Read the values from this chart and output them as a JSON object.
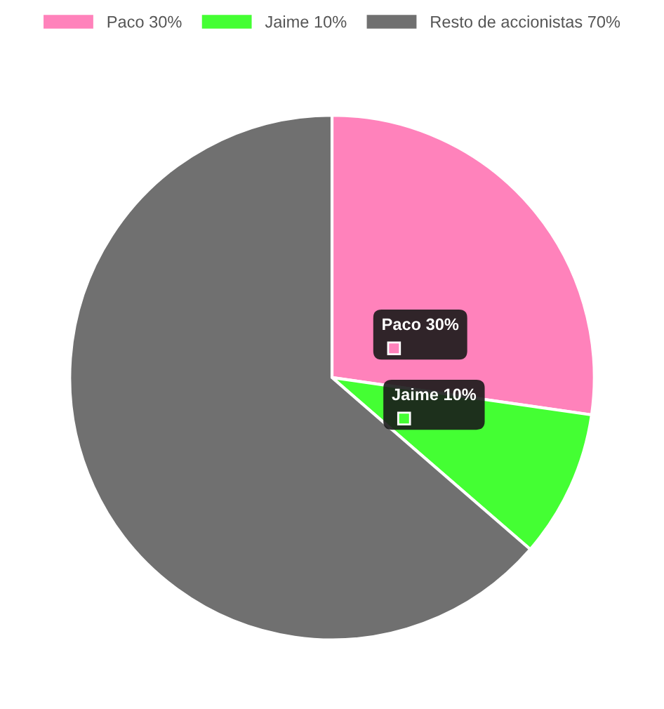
{
  "chart_data": {
    "type": "pie",
    "categories": [
      "Paco 30%",
      "Jaime 10%",
      "Resto de accionistas 70%"
    ],
    "values": [
      30,
      10,
      70
    ],
    "colors": [
      "#ff82bb",
      "#44ff33",
      "#707070"
    ],
    "legend": "top",
    "annotations": [
      "Paco 30%",
      "Jaime 10%"
    ]
  }
}
